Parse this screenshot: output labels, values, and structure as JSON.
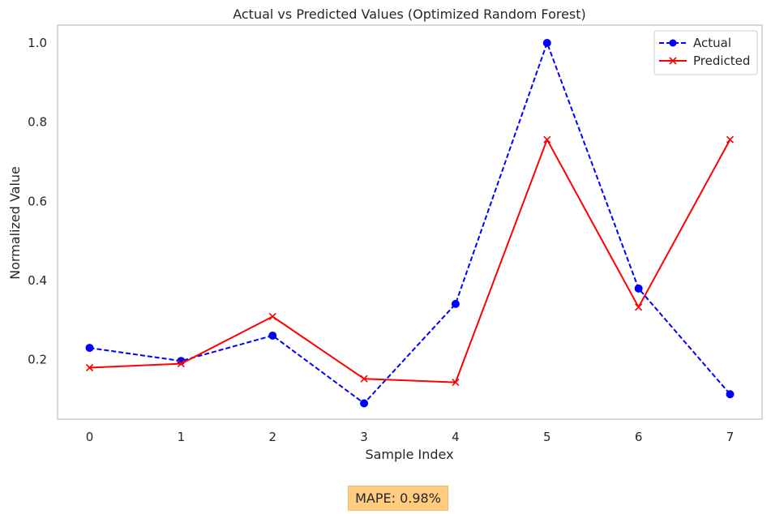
{
  "chart_data": {
    "type": "line",
    "title": "Actual vs Predicted Values (Optimized Random Forest)",
    "xlabel": "Sample Index",
    "ylabel": "Normalized Value",
    "x": [
      0,
      1,
      2,
      3,
      4,
      5,
      6,
      7
    ],
    "xticks": [
      "0",
      "1",
      "2",
      "3",
      "4",
      "5",
      "6",
      "7"
    ],
    "yticks": [
      "0.2",
      "0.4",
      "0.6",
      "0.8",
      "1.0"
    ],
    "ytick_values": [
      0.2,
      0.4,
      0.6,
      0.8,
      1.0
    ],
    "xlim": [
      -0.35,
      7.35
    ],
    "ylim": [
      0.05,
      1.045
    ],
    "grid": false,
    "legend_position": "top-right",
    "series": [
      {
        "name": "Actual",
        "values": [
          0.23,
          0.197,
          0.261,
          0.09,
          0.341,
          1.0,
          0.38,
          0.113
        ],
        "color": "#0000ff",
        "line_style": "dashed",
        "marker": "circle"
      },
      {
        "name": "Predicted",
        "values": [
          0.18,
          0.19,
          0.309,
          0.152,
          0.143,
          0.756,
          0.333,
          0.756
        ],
        "color": "#ff0000",
        "line_style": "solid",
        "marker": "x"
      }
    ],
    "annotation": "MAPE: 0.98%",
    "annotation_color": "#ffcc80"
  }
}
